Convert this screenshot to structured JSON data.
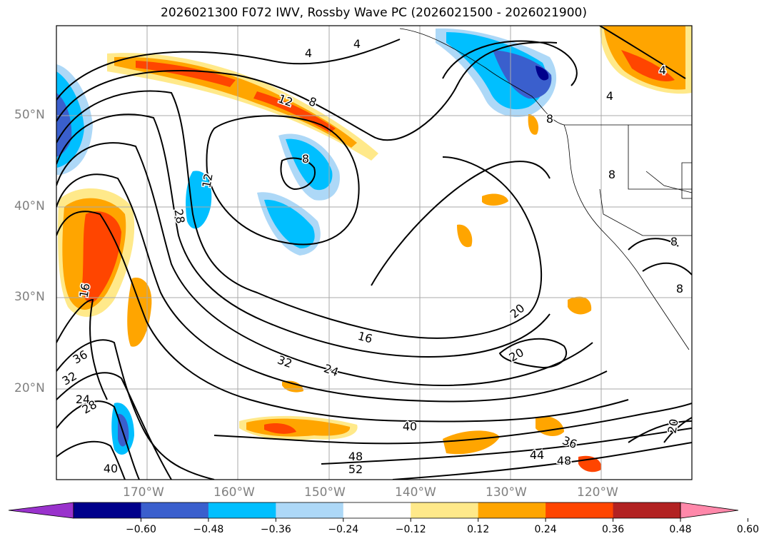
{
  "title": "2026021300 F072 IWV, Rossby Wave PC (2026021500 - 2026021900)",
  "map": {
    "lat_labels": [
      "50°N",
      "40°N",
      "30°N",
      "20°N"
    ],
    "lon_labels": [
      "170°W",
      "160°W",
      "150°W",
      "140°W",
      "130°W",
      "120°W"
    ]
  },
  "contour_labels": [
    "4",
    "4",
    "4",
    "4",
    "8",
    "8",
    "8",
    "8",
    "8",
    "8",
    "12",
    "12",
    "16",
    "16",
    "20",
    "20",
    "20",
    "24",
    "24",
    "28",
    "28",
    "32",
    "32",
    "36",
    "36",
    "40",
    "40",
    "44",
    "48",
    "48",
    "52"
  ],
  "colorbar": {
    "ticks": [
      "−0.60",
      "−0.48",
      "−0.36",
      "−0.24",
      "−0.12",
      "0.12",
      "0.24",
      "0.36",
      "0.48",
      "0.60"
    ],
    "colors": [
      "#9932cc",
      "#00008b",
      "#3a5fcd",
      "#00bfff",
      "#add8f7",
      "#ffffff",
      "#ffe98a",
      "#ffa500",
      "#ff4500",
      "#b22222",
      "#ff88aa"
    ]
  }
}
